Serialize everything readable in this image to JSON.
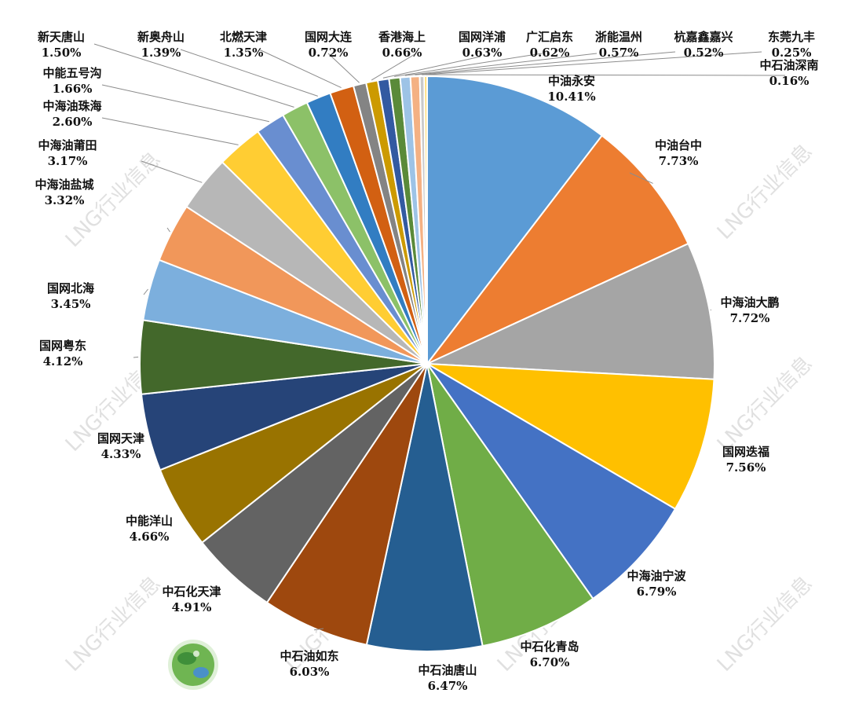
{
  "chart_data": {
    "type": "pie",
    "title": "",
    "start_angle_deg": 0,
    "direction": "clockwise",
    "slice_border": "#ffffff",
    "slices": [
      {
        "name": "中油永安",
        "value": 10.41,
        "label": "10.41%",
        "color": "#5b9bd5"
      },
      {
        "name": "中油台中",
        "value": 7.73,
        "label": "7.73%",
        "color": "#ed7d31"
      },
      {
        "name": "中海油大鹏",
        "value": 7.72,
        "label": "7.72%",
        "color": "#a5a5a5"
      },
      {
        "name": "国网迭福",
        "value": 7.56,
        "label": "7.56%",
        "color": "#ffc000"
      },
      {
        "name": "中海油宁波",
        "value": 6.79,
        "label": "6.79%",
        "color": "#4472c4"
      },
      {
        "name": "中石化青岛",
        "value": 6.7,
        "label": "6.70%",
        "color": "#70ad47"
      },
      {
        "name": "中石油唐山",
        "value": 6.47,
        "label": "6.47%",
        "color": "#255e91"
      },
      {
        "name": "中石油如东",
        "value": 6.03,
        "label": "6.03%",
        "color": "#9e480e"
      },
      {
        "name": "中石化天津",
        "value": 4.91,
        "label": "4.91%",
        "color": "#636363"
      },
      {
        "name": "中能洋山",
        "value": 4.66,
        "label": "4.66%",
        "color": "#997300"
      },
      {
        "name": "国网天津",
        "value": 4.33,
        "label": "4.33%",
        "color": "#264478"
      },
      {
        "name": "国网粤东",
        "value": 4.12,
        "label": "4.12%",
        "color": "#43682b"
      },
      {
        "name": "国网北海",
        "value": 3.45,
        "label": "3.45%",
        "color": "#7cafdd"
      },
      {
        "name": "中海油盐城",
        "value": 3.32,
        "label": "3.32%",
        "color": "#f1975a"
      },
      {
        "name": "中海油莆田",
        "value": 3.17,
        "label": "3.17%",
        "color": "#b7b7b7"
      },
      {
        "name": "中海油珠海",
        "value": 2.6,
        "label": "2.60%",
        "color": "#ffcd33"
      },
      {
        "name": "中能五号沟",
        "value": 1.66,
        "label": "1.66%",
        "color": "#698ed0"
      },
      {
        "name": "新天唐山",
        "value": 1.5,
        "label": "1.50%",
        "color": "#8cc168"
      },
      {
        "name": "新奥舟山",
        "value": 1.39,
        "label": "1.39%",
        "color": "#327dc2"
      },
      {
        "name": "北燃天津",
        "value": 1.35,
        "label": "1.35%",
        "color": "#d26012"
      },
      {
        "name": "国网大连",
        "value": 0.72,
        "label": "0.72%",
        "color": "#848484"
      },
      {
        "name": "香港海上",
        "value": 0.66,
        "label": "0.66%",
        "color": "#cc9a00"
      },
      {
        "name": "国网洋浦",
        "value": 0.63,
        "label": "0.63%",
        "color": "#335aa1"
      },
      {
        "name": "广汇启东",
        "value": 0.62,
        "label": "0.62%",
        "color": "#5a8a39"
      },
      {
        "name": "浙能温州",
        "value": 0.57,
        "label": "0.57%",
        "color": "#9dc3e6"
      },
      {
        "name": "杭嘉鑫嘉兴",
        "value": 0.52,
        "label": "0.52%",
        "color": "#f4b183"
      },
      {
        "name": "东莞九丰",
        "value": 0.25,
        "label": "0.25%",
        "color": "#c9c9c9"
      },
      {
        "name": "中石油深南",
        "value": 0.16,
        "label": "0.16%",
        "color": "#ffd966"
      }
    ]
  },
  "watermark": {
    "text": "LNG行业信息"
  }
}
